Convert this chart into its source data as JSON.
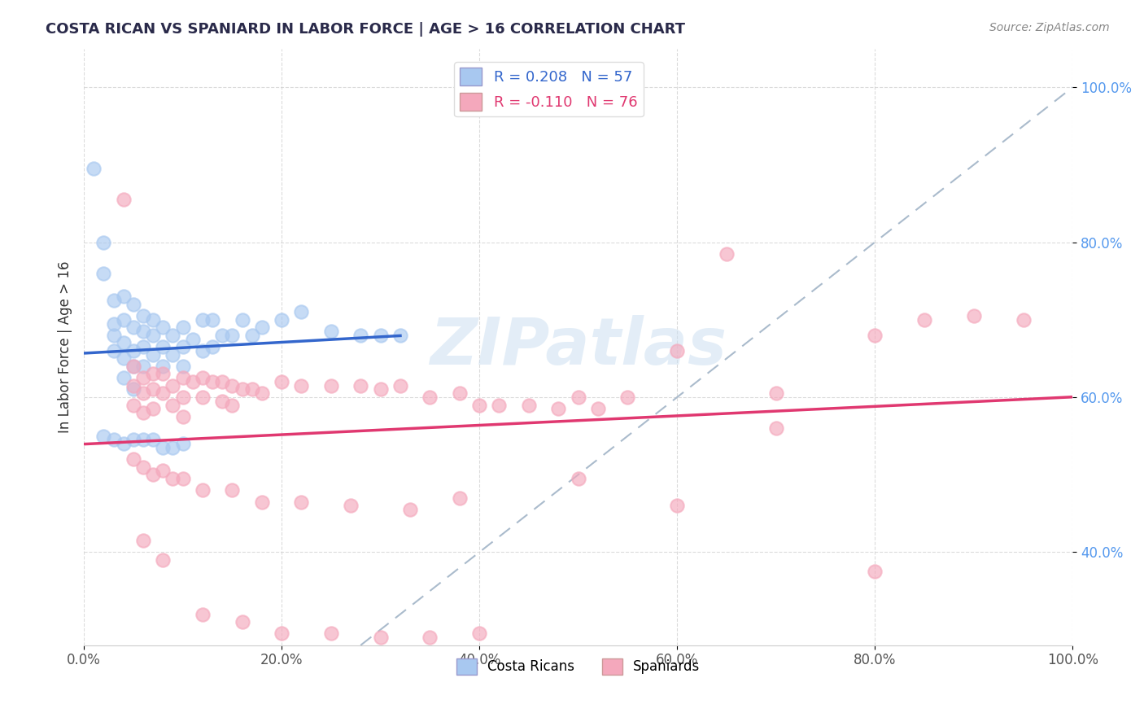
{
  "title": "COSTA RICAN VS SPANIARD IN LABOR FORCE | AGE > 16 CORRELATION CHART",
  "source": "Source: ZipAtlas.com",
  "ylabel": "In Labor Force | Age > 16",
  "xlim": [
    0.0,
    1.0
  ],
  "ylim": [
    0.28,
    1.05
  ],
  "x_ticks": [
    0.0,
    0.2,
    0.4,
    0.6,
    0.8,
    1.0
  ],
  "x_tick_labels": [
    "0.0%",
    "20.0%",
    "40.0%",
    "60.0%",
    "80.0%",
    "100.0%"
  ],
  "y_ticks": [
    0.4,
    0.6,
    0.8,
    1.0
  ],
  "y_tick_labels": [
    "40.0%",
    "60.0%",
    "80.0%",
    "100.0%"
  ],
  "costa_rican_color": "#a8c8f0",
  "spaniard_color": "#f4a8bc",
  "costa_rican_line_color": "#3366cc",
  "spaniard_line_color": "#e03870",
  "dashed_line_color": "#aabbcc",
  "r_costa_rican": 0.208,
  "n_costa_rican": 57,
  "r_spaniard": -0.11,
  "n_spaniard": 76,
  "watermark": "ZIPatlas",
  "costa_rican_x": [
    0.01,
    0.02,
    0.02,
    0.03,
    0.03,
    0.03,
    0.03,
    0.04,
    0.04,
    0.04,
    0.04,
    0.04,
    0.05,
    0.05,
    0.05,
    0.05,
    0.05,
    0.06,
    0.06,
    0.06,
    0.06,
    0.07,
    0.07,
    0.07,
    0.08,
    0.08,
    0.08,
    0.09,
    0.09,
    0.1,
    0.1,
    0.1,
    0.11,
    0.12,
    0.12,
    0.13,
    0.13,
    0.14,
    0.15,
    0.16,
    0.17,
    0.18,
    0.2,
    0.22,
    0.25,
    0.28,
    0.3,
    0.32,
    0.02,
    0.03,
    0.04,
    0.05,
    0.06,
    0.07,
    0.08,
    0.09,
    0.1
  ],
  "costa_rican_y": [
    0.895,
    0.8,
    0.76,
    0.725,
    0.695,
    0.68,
    0.66,
    0.73,
    0.7,
    0.67,
    0.65,
    0.625,
    0.72,
    0.69,
    0.66,
    0.64,
    0.61,
    0.705,
    0.685,
    0.665,
    0.64,
    0.7,
    0.68,
    0.655,
    0.69,
    0.665,
    0.64,
    0.68,
    0.655,
    0.69,
    0.665,
    0.64,
    0.675,
    0.7,
    0.66,
    0.7,
    0.665,
    0.68,
    0.68,
    0.7,
    0.68,
    0.69,
    0.7,
    0.71,
    0.685,
    0.68,
    0.68,
    0.68,
    0.55,
    0.545,
    0.54,
    0.545,
    0.545,
    0.545,
    0.535,
    0.535,
    0.54
  ],
  "spaniard_x": [
    0.04,
    0.05,
    0.05,
    0.05,
    0.06,
    0.06,
    0.06,
    0.07,
    0.07,
    0.07,
    0.08,
    0.08,
    0.09,
    0.09,
    0.1,
    0.1,
    0.1,
    0.11,
    0.12,
    0.12,
    0.13,
    0.14,
    0.14,
    0.15,
    0.15,
    0.16,
    0.17,
    0.18,
    0.2,
    0.22,
    0.25,
    0.28,
    0.3,
    0.32,
    0.35,
    0.38,
    0.4,
    0.42,
    0.45,
    0.48,
    0.5,
    0.52,
    0.55,
    0.6,
    0.65,
    0.7,
    0.8,
    0.9,
    0.05,
    0.06,
    0.07,
    0.08,
    0.09,
    0.1,
    0.12,
    0.15,
    0.18,
    0.22,
    0.27,
    0.33,
    0.38,
    0.85,
    0.06,
    0.08,
    0.12,
    0.16,
    0.2,
    0.25,
    0.3,
    0.35,
    0.4,
    0.5,
    0.6,
    0.7,
    0.8,
    0.95
  ],
  "spaniard_y": [
    0.855,
    0.64,
    0.615,
    0.59,
    0.625,
    0.605,
    0.58,
    0.63,
    0.61,
    0.585,
    0.63,
    0.605,
    0.615,
    0.59,
    0.625,
    0.6,
    0.575,
    0.62,
    0.625,
    0.6,
    0.62,
    0.62,
    0.595,
    0.615,
    0.59,
    0.61,
    0.61,
    0.605,
    0.62,
    0.615,
    0.615,
    0.615,
    0.61,
    0.615,
    0.6,
    0.605,
    0.59,
    0.59,
    0.59,
    0.585,
    0.6,
    0.585,
    0.6,
    0.66,
    0.785,
    0.605,
    0.68,
    0.705,
    0.52,
    0.51,
    0.5,
    0.505,
    0.495,
    0.495,
    0.48,
    0.48,
    0.465,
    0.465,
    0.46,
    0.455,
    0.47,
    0.7,
    0.415,
    0.39,
    0.32,
    0.31,
    0.295,
    0.295,
    0.29,
    0.29,
    0.295,
    0.495,
    0.46,
    0.56,
    0.375,
    0.7
  ]
}
